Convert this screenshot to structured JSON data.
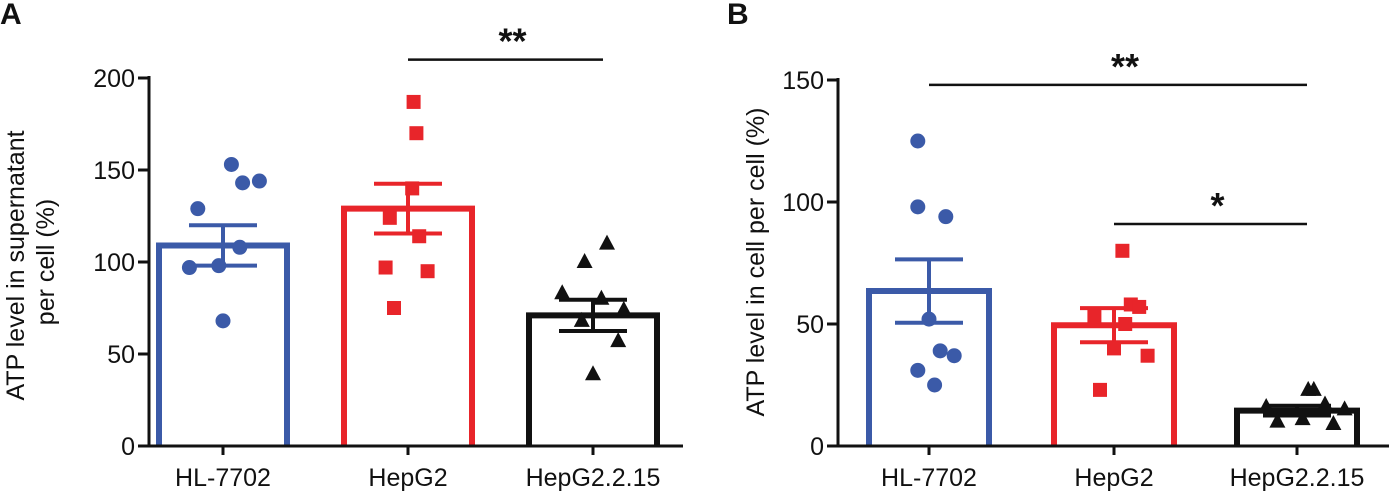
{
  "chart_data": [
    {
      "panel": "A",
      "type": "bar",
      "ylabel_lines": [
        "ATP level in supernatant",
        "per cell (%)"
      ],
      "ylim": [
        0,
        200
      ],
      "yticks": [
        0,
        50,
        100,
        150,
        200
      ],
      "categories": [
        "HL-7702",
        "HepG2",
        "HepG2.2.15"
      ],
      "series": [
        {
          "name": "HL-7702",
          "color": "#3b5aa8",
          "marker": "circle",
          "mean": 109,
          "sem": 11,
          "points": [
            153,
            144,
            143,
            129,
            108,
            98,
            97,
            68
          ]
        },
        {
          "name": "HepG2",
          "color": "#e8252a",
          "marker": "square",
          "mean": 129,
          "sem": 13.5,
          "points": [
            187,
            170,
            140,
            124,
            114,
            97,
            95,
            75
          ]
        },
        {
          "name": "HepG2.2.15",
          "color": "#111111",
          "marker": "triangle",
          "mean": 71,
          "sem": 8.5,
          "points": [
            110,
            100,
            83,
            80,
            74,
            68,
            57,
            39
          ]
        }
      ],
      "significance": [
        {
          "from": "HepG2",
          "to": "HepG2.2.15",
          "label": "**",
          "y": 210
        }
      ]
    },
    {
      "panel": "B",
      "type": "bar",
      "ylabel_lines": [
        "ATP level in cell per cell (%)"
      ],
      "ylim": [
        0,
        150
      ],
      "yticks": [
        0,
        50,
        100,
        150
      ],
      "categories": [
        "HL-7702",
        "HepG2",
        "HepG2.2.15"
      ],
      "series": [
        {
          "name": "HL-7702",
          "color": "#3b5aa8",
          "marker": "circle",
          "mean": 63.5,
          "sem": 13,
          "points": [
            125,
            98,
            94,
            52,
            39,
            37,
            31,
            25
          ]
        },
        {
          "name": "HepG2",
          "color": "#e8252a",
          "marker": "square",
          "mean": 49.5,
          "sem": 7,
          "points": [
            80,
            58,
            57,
            53,
            50,
            40,
            37,
            23
          ]
        },
        {
          "name": "HepG2.2.15",
          "color": "#111111",
          "marker": "triangle",
          "mean": 14.5,
          "sem": 2,
          "points": [
            23,
            23,
            17,
            16,
            15,
            11,
            10,
            9
          ]
        }
      ],
      "significance": [
        {
          "from": "HL-7702",
          "to": "HepG2.2.15",
          "label": "**",
          "y": 148
        },
        {
          "from": "HepG2",
          "to": "HepG2.2.15",
          "label": "*",
          "y": 91
        }
      ]
    }
  ]
}
